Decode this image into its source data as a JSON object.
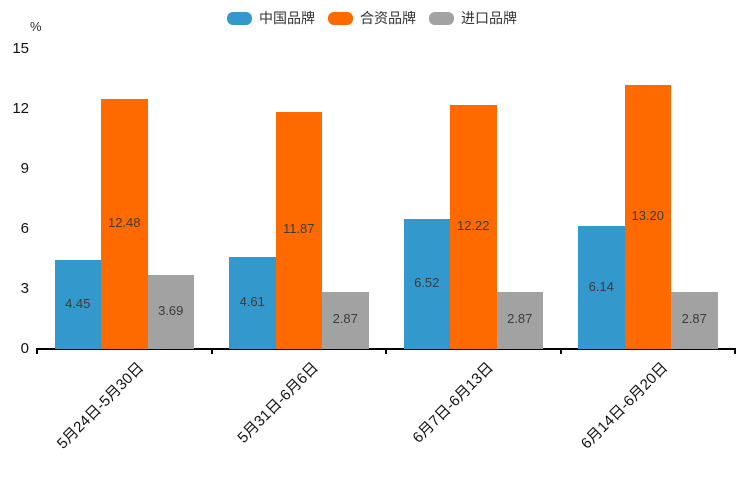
{
  "chart_data": {
    "type": "bar",
    "title": "",
    "categories": [
      "5月24日-5月30日",
      "5月31日-6月6日",
      "6月7日-6月13日",
      "6月14日-6月20日"
    ],
    "series": [
      {
        "name": "中国品牌",
        "color": "#3398CB",
        "values": [
          4.45,
          4.61,
          6.52,
          6.14
        ]
      },
      {
        "name": "合资品牌",
        "color": "#FF6A00",
        "values": [
          12.48,
          11.87,
          12.22,
          13.2
        ]
      },
      {
        "name": "进口品牌",
        "color": "#A2A2A2",
        "values": [
          3.69,
          2.87,
          2.87,
          2.87
        ]
      }
    ],
    "xlabel": "",
    "ylabel": "%",
    "ylim": [
      0,
      15
    ],
    "yticks": [
      0,
      3,
      6,
      9,
      12,
      15
    ],
    "legend_position": "top",
    "grid": false,
    "value_labels": true,
    "value_label_decimals": 2,
    "axis_color": "#000000"
  }
}
